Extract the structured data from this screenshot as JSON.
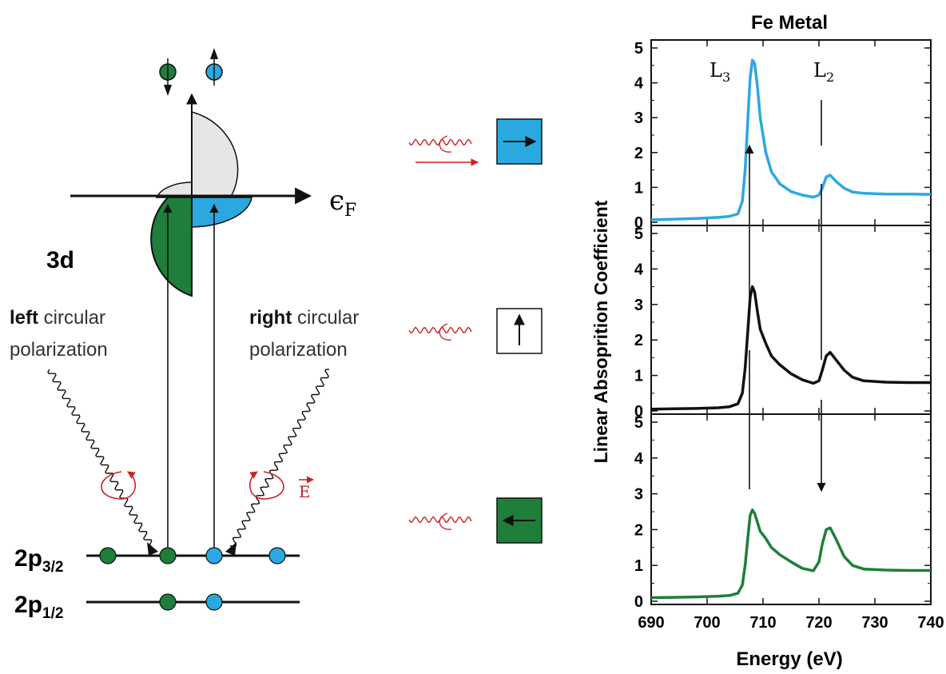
{
  "colors": {
    "green": "#1e7e3a",
    "blue": "#2ba8e0",
    "red": "#cc2222",
    "gray": "#e6e6e6",
    "black": "#111111"
  },
  "diagram": {
    "fermi_label": "ϵ",
    "fermi_sub": "F",
    "band_label": "3d",
    "left_word": "left",
    "left_rest": " circular",
    "left_line2": "polarization",
    "right_word": "right",
    "right_rest": " circular",
    "right_line2": "polarization",
    "efield_label": "E",
    "level_top_main": "2p",
    "level_top_sub": "3/2",
    "level_bot_main": "2p",
    "level_bot_sub": "1/2"
  },
  "chart_data": {
    "type": "line",
    "title": "Fe Metal",
    "xlabel": "Energy (eV)",
    "ylabel": "Linear Absoprition Coefficient",
    "xlim": [
      690,
      740
    ],
    "xticks": [
      690,
      700,
      710,
      720,
      730,
      740
    ],
    "ylim": [
      0,
      5
    ],
    "yticks": [
      0,
      1,
      2,
      3,
      4,
      5
    ],
    "peak_labels": [
      {
        "main": "L",
        "sub": "3"
      },
      {
        "main": "L",
        "sub": "2"
      }
    ],
    "panels": [
      {
        "color": "#2ba8e0",
        "x": [
          690,
          694,
          698,
          702,
          704,
          705.5,
          706.3,
          706.8,
          707.3,
          707.7,
          708.1,
          708.5,
          709,
          709.5,
          710.5,
          711.5,
          713,
          715,
          717,
          719,
          720,
          720.6,
          721.3,
          722,
          723,
          724.5,
          726,
          728,
          732,
          736,
          740
        ],
        "y": [
          0.07,
          0.09,
          0.11,
          0.14,
          0.17,
          0.24,
          0.6,
          1.5,
          3.0,
          4.15,
          4.65,
          4.55,
          3.9,
          3.0,
          2.0,
          1.45,
          1.1,
          0.88,
          0.78,
          0.72,
          0.78,
          0.98,
          1.3,
          1.35,
          1.18,
          0.98,
          0.87,
          0.83,
          0.81,
          0.81,
          0.8
        ]
      },
      {
        "color": "#111111",
        "x": [
          690,
          694,
          698,
          702,
          704,
          705.5,
          706.3,
          706.8,
          707.3,
          707.7,
          708.1,
          708.5,
          709,
          709.5,
          710.5,
          711.5,
          713,
          715,
          717,
          719,
          720,
          720.6,
          721.3,
          722,
          723,
          724.5,
          726,
          728,
          732,
          736,
          740
        ],
        "y": [
          0.05,
          0.06,
          0.07,
          0.09,
          0.12,
          0.2,
          0.5,
          1.2,
          2.3,
          3.2,
          3.5,
          3.35,
          2.8,
          2.3,
          1.9,
          1.55,
          1.3,
          1.05,
          0.88,
          0.78,
          0.85,
          1.15,
          1.55,
          1.65,
          1.45,
          1.15,
          0.95,
          0.85,
          0.81,
          0.8,
          0.8
        ]
      },
      {
        "color": "#1e7e3a",
        "x": [
          690,
          694,
          698,
          702,
          704,
          705.5,
          706.3,
          706.8,
          707.3,
          707.7,
          708.1,
          708.5,
          709,
          709.5,
          710.5,
          711.5,
          713,
          715,
          717,
          719,
          720,
          720.6,
          721.3,
          722,
          723,
          724.5,
          726,
          728,
          732,
          736,
          740
        ],
        "y": [
          0.1,
          0.11,
          0.12,
          0.14,
          0.16,
          0.22,
          0.45,
          1.0,
          1.8,
          2.4,
          2.55,
          2.45,
          2.2,
          1.95,
          1.75,
          1.5,
          1.3,
          1.1,
          0.92,
          0.85,
          1.1,
          1.6,
          2.0,
          2.05,
          1.75,
          1.25,
          1.0,
          0.9,
          0.87,
          0.86,
          0.86
        ]
      }
    ]
  }
}
